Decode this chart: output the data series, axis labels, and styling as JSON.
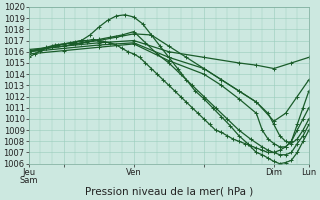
{
  "title": "",
  "xlabel": "Pression niveau de la mer( hPa )",
  "bg_color": "#cce8e0",
  "grid_color": "#99ccbb",
  "line_color": "#1a5c2a",
  "ylim": [
    1006,
    1020
  ],
  "yticks": [
    1006,
    1007,
    1008,
    1009,
    1010,
    1011,
    1012,
    1013,
    1014,
    1015,
    1016,
    1017,
    1018,
    1019,
    1020
  ],
  "xlim": [
    0,
    96
  ],
  "xtick_positions": [
    0,
    12,
    36,
    60,
    84,
    96
  ],
  "xtick_labels": [
    "Jeu\nSam",
    "",
    "Ven",
    "",
    "Dim",
    "Lun\n "
  ],
  "lines": [
    {
      "x": [
        0,
        2,
        4,
        6,
        8,
        10,
        12,
        14,
        16,
        18,
        20,
        22,
        24,
        26,
        28,
        30,
        32,
        34,
        36,
        38,
        40,
        42,
        44,
        46,
        48,
        50,
        52,
        54,
        56,
        58,
        60,
        62,
        64,
        66,
        68,
        70,
        72,
        74,
        76,
        78,
        80,
        82,
        84,
        86,
        88,
        90,
        92,
        94,
        96
      ],
      "y": [
        1015.5,
        1015.8,
        1016.1,
        1016.3,
        1016.5,
        1016.6,
        1016.7,
        1016.8,
        1016.9,
        1017.0,
        1017.0,
        1017.1,
        1017.0,
        1016.9,
        1016.8,
        1016.6,
        1016.3,
        1016.0,
        1015.8,
        1015.5,
        1015.0,
        1014.5,
        1014.0,
        1013.5,
        1013.0,
        1012.5,
        1012.0,
        1011.5,
        1011.0,
        1010.5,
        1010.0,
        1009.5,
        1009.0,
        1008.8,
        1008.5,
        1008.2,
        1008.0,
        1007.8,
        1007.6,
        1007.4,
        1007.2,
        1007.0,
        1007.0,
        1007.2,
        1007.5,
        1008.0,
        1009.0,
        1010.0,
        1011.0
      ]
    },
    {
      "x": [
        0,
        3,
        6,
        9,
        12,
        15,
        18,
        21,
        24,
        27,
        30,
        33,
        36,
        39,
        42,
        45,
        48,
        51,
        54,
        57,
        60,
        63,
        66,
        69,
        72,
        75,
        78,
        80,
        82,
        84,
        86,
        88,
        90,
        92,
        94,
        96
      ],
      "y": [
        1016.0,
        1016.2,
        1016.4,
        1016.6,
        1016.7,
        1016.8,
        1017.0,
        1017.5,
        1018.2,
        1018.8,
        1019.2,
        1019.3,
        1019.1,
        1018.5,
        1017.5,
        1016.5,
        1015.5,
        1014.5,
        1013.5,
        1012.5,
        1011.8,
        1011.0,
        1010.2,
        1009.4,
        1008.5,
        1007.8,
        1007.0,
        1006.8,
        1006.5,
        1006.2,
        1006.0,
        1006.1,
        1006.3,
        1007.0,
        1008.0,
        1009.0
      ]
    },
    {
      "x": [
        0,
        4,
        8,
        12,
        16,
        20,
        24,
        28,
        32,
        36,
        40,
        44,
        48,
        52,
        56,
        60,
        64,
        68,
        72,
        76,
        80,
        82,
        84,
        86,
        88,
        90,
        92,
        94,
        96
      ],
      "y": [
        1016.0,
        1016.2,
        1016.4,
        1016.5,
        1016.7,
        1016.9,
        1017.1,
        1017.3,
        1017.5,
        1017.8,
        1016.8,
        1015.8,
        1015.0,
        1014.0,
        1013.0,
        1012.0,
        1011.0,
        1010.0,
        1009.0,
        1008.2,
        1007.5,
        1007.2,
        1007.0,
        1006.8,
        1006.8,
        1007.0,
        1007.8,
        1008.5,
        1009.5
      ]
    },
    {
      "x": [
        0,
        6,
        12,
        18,
        24,
        30,
        36,
        42,
        48,
        54,
        60,
        66,
        72,
        78,
        82,
        84,
        86,
        88,
        90,
        92,
        94,
        96
      ],
      "y": [
        1016.1,
        1016.3,
        1016.5,
        1016.8,
        1017.0,
        1017.3,
        1017.6,
        1017.5,
        1016.5,
        1015.5,
        1014.5,
        1013.5,
        1012.5,
        1011.5,
        1010.5,
        1009.5,
        1008.5,
        1008.0,
        1007.8,
        1008.2,
        1009.0,
        1010.0
      ]
    },
    {
      "x": [
        0,
        12,
        24,
        36,
        48,
        60,
        72,
        78,
        84,
        90,
        96
      ],
      "y": [
        1016.2,
        1016.5,
        1016.8,
        1017.0,
        1016.0,
        1015.5,
        1015.0,
        1014.8,
        1014.5,
        1015.0,
        1015.5
      ]
    },
    {
      "x": [
        0,
        12,
        24,
        36,
        48,
        60,
        66,
        72,
        78,
        84,
        88,
        92,
        96
      ],
      "y": [
        1016.0,
        1016.3,
        1016.6,
        1016.8,
        1015.5,
        1014.5,
        1013.5,
        1012.5,
        1011.5,
        1009.8,
        1010.5,
        1012.0,
        1013.5
      ]
    },
    {
      "x": [
        0,
        12,
        24,
        36,
        48,
        60,
        66,
        72,
        78,
        80,
        82,
        84,
        86,
        88,
        90,
        92,
        94,
        96
      ],
      "y": [
        1015.8,
        1016.1,
        1016.4,
        1016.7,
        1015.2,
        1014.0,
        1013.0,
        1011.8,
        1010.5,
        1009.0,
        1008.2,
        1007.8,
        1007.5,
        1007.5,
        1008.0,
        1009.5,
        1011.0,
        1012.5
      ]
    }
  ],
  "marker_size": 3.0,
  "line_width": 0.9,
  "tick_label_fontsize": 6.0,
  "xlabel_fontsize": 7.5
}
